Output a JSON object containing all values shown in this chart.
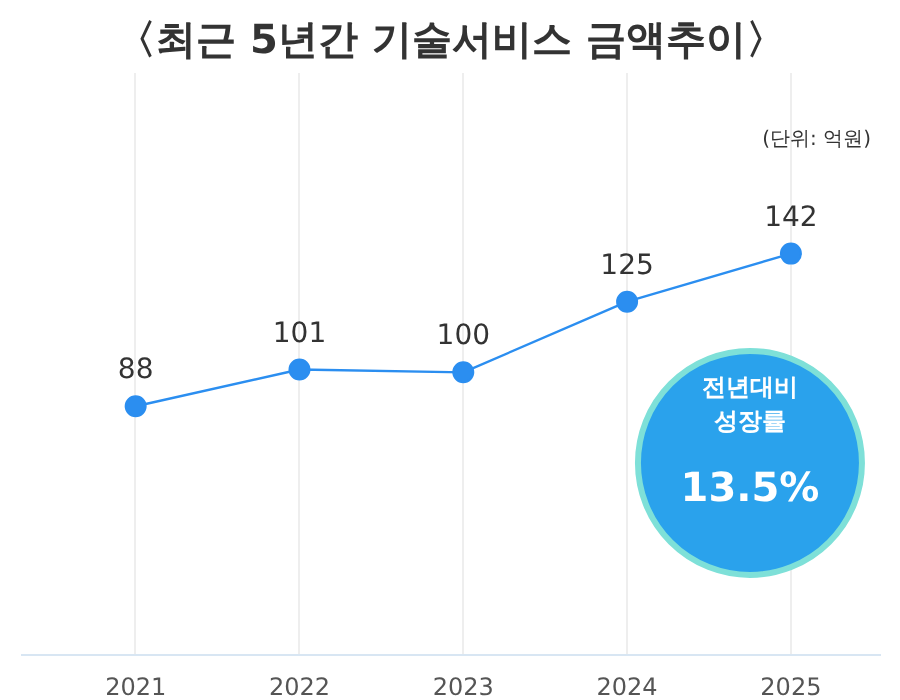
{
  "chart_data": {
    "type": "line",
    "title": "〈최근 5년간 기술서비스 금액추이〉",
    "categories": [
      "2021",
      "2022",
      "2023",
      "2024",
      "2025"
    ],
    "series": [
      {
        "color": "#2b8ef0",
        "values": [
          88,
          101,
          100,
          125,
          142
        ]
      }
    ],
    "data_labels": true,
    "marker": "circle",
    "grid": "x",
    "annotations": [
      "(단위: 억원)",
      "전년대비 성장률",
      "13.5%"
    ]
  }
}
